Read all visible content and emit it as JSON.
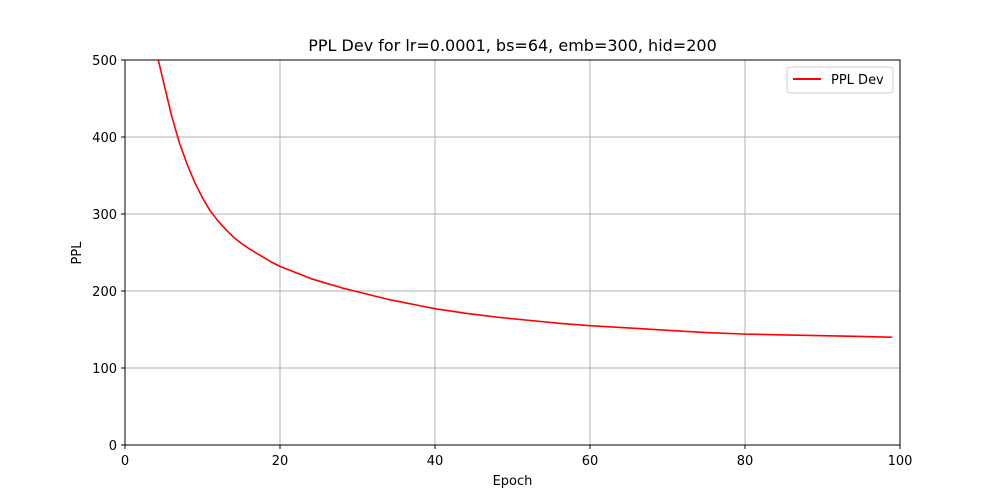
{
  "chart_data": {
    "type": "line",
    "title": "PPL Dev for lr=0.0001, bs=64, emb=300, hid=200",
    "xlabel": "Epoch",
    "ylabel": "PPL",
    "xlim": [
      0,
      100
    ],
    "ylim": [
      0,
      500
    ],
    "xticks": [
      0,
      20,
      40,
      60,
      80,
      100
    ],
    "yticks": [
      0,
      100,
      200,
      300,
      400,
      500
    ],
    "grid": true,
    "legend_position": "top-right",
    "series": [
      {
        "name": "PPL Dev",
        "color": "#ff0000",
        "x": [
          4.3,
          5,
          6,
          7,
          8,
          9,
          10,
          11,
          12,
          13,
          14,
          15,
          16,
          17,
          18,
          19,
          20,
          22,
          24,
          26,
          28,
          30,
          32,
          34,
          36,
          38,
          40,
          44,
          48,
          52,
          56,
          60,
          65,
          70,
          75,
          80,
          85,
          90,
          95,
          99
        ],
        "y": [
          500,
          470,
          428,
          393,
          365,
          341,
          321,
          304,
          291,
          280,
          270,
          262,
          255,
          249,
          243,
          237,
          232,
          224,
          216,
          210,
          204,
          199,
          194,
          189,
          185,
          181,
          177,
          171,
          166,
          162,
          158,
          155,
          152,
          149,
          146,
          144,
          143,
          142,
          141,
          140
        ]
      }
    ]
  }
}
